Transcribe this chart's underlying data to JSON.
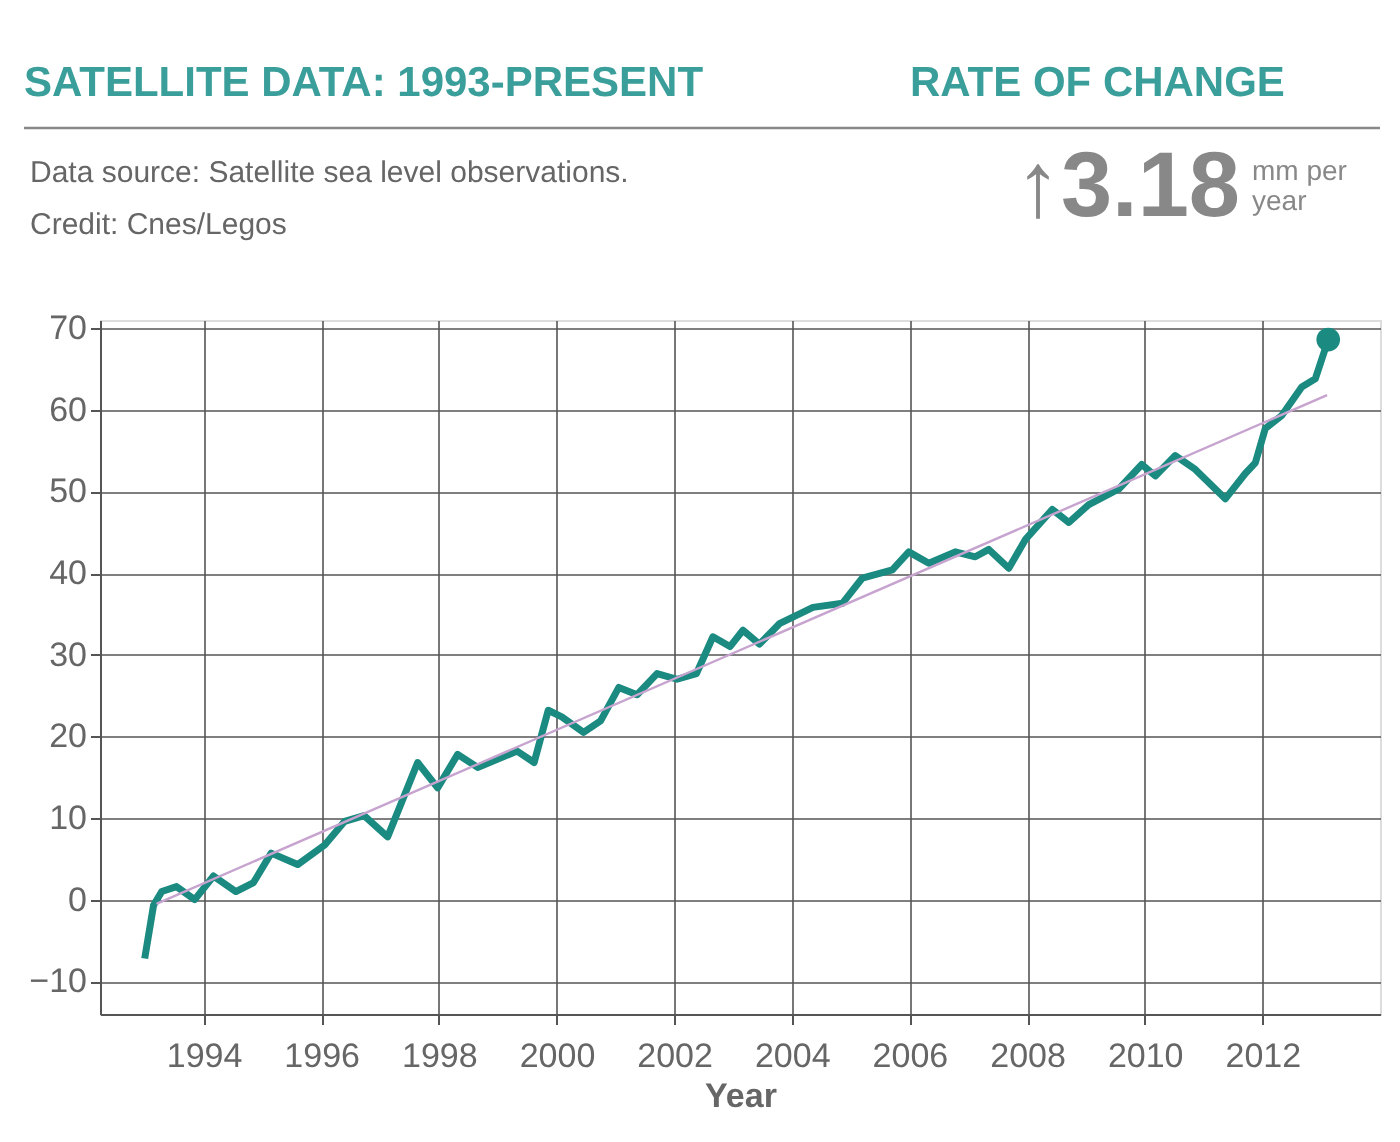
{
  "chart_data": {
    "type": "line",
    "title": "SATELLITE DATA: 1993-PRESENT",
    "xlabel": "Year",
    "annotations": [
      "RATE OF CHANGE",
      "Data source: Satellite sea level observations.",
      "Credit: Cnes/Legos",
      "↑3.18",
      "mm per year"
    ],
    "series": [
      {
        "color": "#1b8a80",
        "x": [
          1993.0,
          1993.15,
          1993.29,
          1993.54,
          1993.85,
          1994.17,
          1994.55,
          1994.85,
          1995.15,
          1995.6,
          1996.06,
          1996.4,
          1996.73,
          1997.13,
          1997.64,
          1997.98,
          1998.32,
          1998.66,
          1999.33,
          1999.62,
          1999.86,
          2000.09,
          2000.46,
          2000.75,
          2001.06,
          2001.37,
          2001.71,
          2002.05,
          2002.38,
          2002.66,
          2002.95,
          2003.17,
          2003.45,
          2003.79,
          2004.36,
          2004.86,
          2005.2,
          2005.71,
          2005.99,
          2006.33,
          2006.78,
          2007.12,
          2007.35,
          2007.69,
          2007.97,
          2008.43,
          2008.71,
          2009.05,
          2009.56,
          2009.95,
          2010.18,
          2010.52,
          2010.86,
          2011.37,
          2011.71,
          2011.88,
          2012.05,
          2012.33,
          2012.67,
          2012.9,
          2013.12
        ],
        "values": [
          -7.2,
          -0.7,
          1.0,
          1.6,
          0.0,
          2.9,
          1.0,
          2.1,
          5.7,
          4.3,
          6.7,
          9.6,
          10.3,
          7.7,
          16.8,
          13.7,
          17.8,
          16.2,
          18.2,
          16.8,
          23.2,
          22.4,
          20.5,
          21.9,
          26.0,
          25.1,
          27.7,
          27.0,
          27.7,
          32.2,
          31.0,
          33.0,
          31.3,
          33.8,
          35.8,
          36.3,
          39.4,
          40.4,
          42.6,
          41.2,
          42.6,
          42.0,
          42.9,
          40.6,
          44.1,
          47.8,
          46.2,
          48.4,
          50.3,
          53.3,
          51.9,
          54.4,
          52.7,
          49.1,
          52.2,
          53.5,
          57.7,
          59.3,
          62.8,
          63.8,
          68.6
        ]
      },
      {
        "type": "line",
        "color": "#c7a3cf",
        "x": [
          1993.2,
          2013.1
        ],
        "values": [
          -0.5,
          61.8
        ]
      },
      {
        "type": "scatter",
        "color": "#1b8a80",
        "x": [
          2013.12
        ],
        "values": [
          68.6
        ]
      }
    ],
    "xlim": [
      1992.24,
      2014.0
    ],
    "xticks": [
      1994,
      1996,
      1998,
      2000,
      2002,
      2004,
      2006,
      2008,
      2010,
      2012
    ],
    "ylim": [
      -14,
      71
    ],
    "yticks": [
      -10,
      0,
      10,
      20,
      30,
      40,
      50,
      60,
      70
    ],
    "grid": true,
    "line_style": "solid"
  }
}
